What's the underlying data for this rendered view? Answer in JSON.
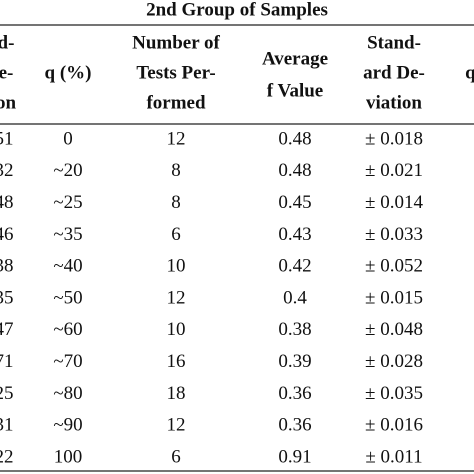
{
  "table": {
    "title": "2nd Group of Samples",
    "left_partial_header": [
      "d-",
      "e-",
      "on"
    ],
    "right_partial_header": [
      "q ("
    ],
    "headers": [
      [
        "q (%)"
      ],
      [
        "Number of",
        "Tests Per-",
        "formed"
      ],
      [
        "Average",
        "f Value"
      ],
      [
        "Stand-",
        "ard De-",
        "viation"
      ]
    ],
    "left_partial_values": [
      "51",
      "32",
      "48",
      "46",
      "38",
      "35",
      "47",
      "71",
      "25",
      "31",
      "22"
    ],
    "rows": [
      [
        "0",
        "12",
        "0.48",
        "± 0.018"
      ],
      [
        "~20",
        "8",
        "0.48",
        "± 0.021"
      ],
      [
        "~25",
        "8",
        "0.45",
        "± 0.014"
      ],
      [
        "~35",
        "6",
        "0.43",
        "± 0.033"
      ],
      [
        "~40",
        "10",
        "0.42",
        "± 0.052"
      ],
      [
        "~50",
        "12",
        "0.4",
        "± 0.015"
      ],
      [
        "~60",
        "10",
        "0.38",
        "± 0.048"
      ],
      [
        "~70",
        "16",
        "0.39",
        "± 0.028"
      ],
      [
        "~80",
        "18",
        "0.36",
        "± 0.035"
      ],
      [
        "~90",
        "12",
        "0.36",
        "± 0.016"
      ],
      [
        "100",
        "6",
        "0.91",
        "± 0.011"
      ]
    ]
  }
}
